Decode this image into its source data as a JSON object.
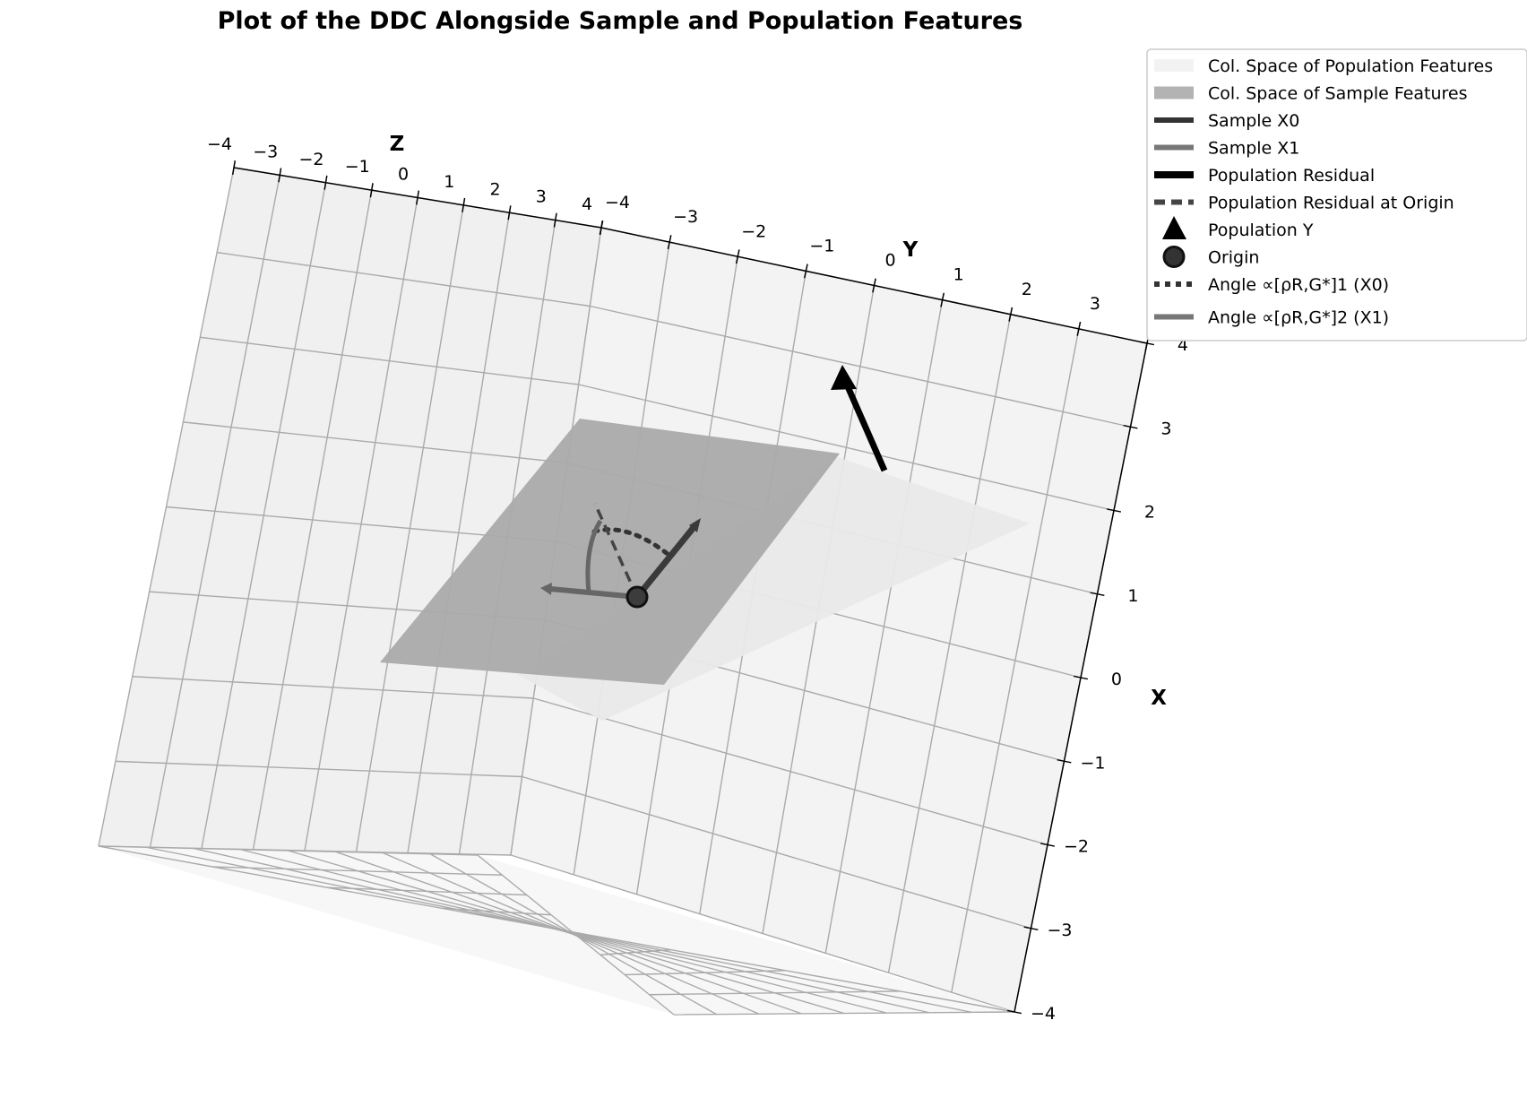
{
  "chart_data": {
    "type": "3d-line",
    "title": "Plot of the DDC Alongside Sample and Population Features",
    "axes": {
      "x": {
        "label": "X",
        "range": [
          -4,
          4
        ],
        "ticks": [
          "−4",
          "−3",
          "−2",
          "−1",
          "0",
          "1",
          "2",
          "3",
          "4"
        ]
      },
      "y": {
        "label": "Y",
        "range": [
          -4,
          4
        ],
        "ticks": [
          "−4",
          "−3",
          "−2",
          "−1",
          "0",
          "1",
          "2",
          "3",
          "4"
        ]
      },
      "z": {
        "label": "Z",
        "range": [
          -4,
          4
        ],
        "ticks": [
          "−4",
          "−3",
          "−2",
          "−1",
          "0",
          "1",
          "2",
          "3",
          "4"
        ]
      }
    },
    "grid": true,
    "legend_position": "top-right",
    "legend": [
      {
        "label": "Col. Space of Population Features",
        "kind": "patch",
        "color": "#f2f2f2"
      },
      {
        "label": "Col. Space of Sample Features",
        "kind": "patch",
        "color": "#b3b3b3"
      },
      {
        "label": "Sample X0",
        "kind": "line",
        "color": "#333333",
        "style": "solid"
      },
      {
        "label": "Sample X1",
        "kind": "line",
        "color": "#777777",
        "style": "solid"
      },
      {
        "label": "Population Residual",
        "kind": "line",
        "color": "#000000",
        "style": "solid"
      },
      {
        "label": "Population Residual at Origin",
        "kind": "line",
        "color": "#444444",
        "style": "dashed"
      },
      {
        "label": "Population Y",
        "kind": "triangle",
        "color": "#000000"
      },
      {
        "label": "Origin",
        "kind": "circle",
        "color": "#333333"
      },
      {
        "label": "Angle ∝[ρR,G*]1 (X0)",
        "kind": "line",
        "color": "#333333",
        "style": "dotted"
      },
      {
        "label": "Angle ∝[ρR,G*]2 (X1)",
        "kind": "line",
        "color": "#777777",
        "style": "solid"
      }
    ],
    "origin": [
      0,
      0,
      0
    ],
    "series": [
      {
        "name": "Sample X0",
        "from": [
          0,
          0,
          0
        ],
        "to": [
          1,
          1,
          0
        ]
      },
      {
        "name": "Sample X1",
        "from": [
          0,
          0,
          0
        ],
        "to": [
          0,
          -1,
          0.5
        ]
      },
      {
        "name": "Population Residual",
        "from": [
          2,
          2,
          1
        ],
        "to": [
          3,
          1.5,
          2
        ]
      },
      {
        "name": "Population Residual at Origin",
        "from": [
          0,
          0,
          0
        ],
        "to": [
          1,
          -0.5,
          1
        ]
      }
    ]
  }
}
